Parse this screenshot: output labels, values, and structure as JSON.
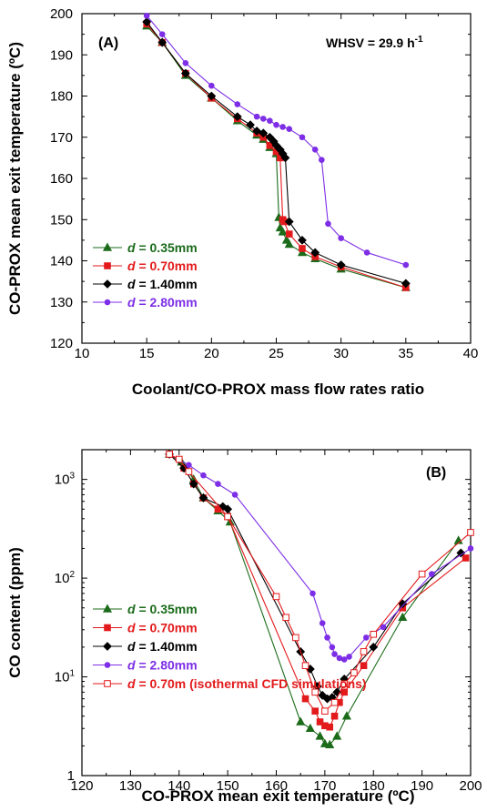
{
  "chart_data": [
    {
      "type": "line",
      "panel_label": "(A)",
      "annotation": {
        "prefix": "WHSV = 29.9 h",
        "sup": "-1"
      },
      "xlabel": "Coolant/CO-PROX mass flow rates ratio",
      "ylabel": "CO-PROX mean exit temperature (ºC)",
      "xlim": [
        10,
        40
      ],
      "ylim": [
        120,
        200
      ],
      "xscale": "linear",
      "yscale": "linear",
      "grid": false,
      "legend_position": "bottom-left",
      "xticks": [
        "10",
        "15",
        "20",
        "25",
        "30",
        "35",
        "40"
      ],
      "yticks": [
        "120",
        "130",
        "140",
        "150",
        "160",
        "170",
        "180",
        "190",
        "200"
      ],
      "series": [
        {
          "name_prefix": "d",
          "name_suffix": " = 0.35mm",
          "color": "#1b6b1b",
          "marker": "triangle",
          "x": [
            15,
            16.2,
            18,
            20,
            22,
            23.5,
            24,
            24.5,
            25,
            25.2,
            25.3,
            25.5,
            25.8,
            26,
            27,
            28,
            30,
            35
          ],
          "y": [
            197,
            193,
            185,
            179.5,
            174,
            170.5,
            169.5,
            167.5,
            166,
            150.5,
            148,
            147,
            145,
            144,
            142,
            140.5,
            138,
            133.5
          ]
        },
        {
          "name_prefix": "d",
          "name_suffix": " = 0.70mm",
          "color": "#e31a1c",
          "marker": "square",
          "x": [
            15,
            16.2,
            18,
            20,
            22,
            23.5,
            24,
            24.5,
            25,
            25.3,
            25.5,
            25.6,
            26,
            27,
            28,
            30,
            35
          ],
          "y": [
            197.5,
            193,
            185.5,
            179.5,
            174.5,
            171,
            170,
            168,
            166.5,
            165,
            150,
            149.5,
            146.5,
            143,
            141,
            138.5,
            133.5
          ]
        },
        {
          "name_prefix": "d",
          "name_suffix": " = 1.40mm",
          "color": "#000000",
          "marker": "diamond",
          "x": [
            15,
            16.2,
            18,
            20,
            22,
            23,
            23.5,
            24,
            24.5,
            24.8,
            25,
            25.3,
            25.5,
            25.7,
            26,
            27,
            28,
            30,
            35
          ],
          "y": [
            198,
            193,
            185.5,
            180,
            175,
            173,
            171.5,
            171,
            170,
            169,
            168,
            167,
            166,
            165,
            149.5,
            145,
            142,
            139,
            134.5
          ]
        },
        {
          "name_prefix": "d",
          "name_suffix": " = 2.80mm",
          "color": "#7d2ee6",
          "marker": "circle",
          "x": [
            15,
            16.2,
            18,
            20,
            22,
            23.5,
            24,
            24.5,
            25,
            25.5,
            26,
            27,
            28,
            28.5,
            29,
            30,
            32,
            35
          ],
          "y": [
            199.5,
            195,
            188,
            182.5,
            178,
            175,
            174.5,
            174,
            173,
            172.5,
            172,
            170,
            167,
            164.5,
            149,
            145.5,
            142,
            139
          ]
        }
      ]
    },
    {
      "type": "line",
      "panel_label": "(B)",
      "xlabel": "CO-PROX mean exit temperature (ºC)",
      "ylabel": "CO content (ppm)",
      "xlim": [
        120,
        200
      ],
      "ylim": [
        1,
        2000
      ],
      "xscale": "linear",
      "yscale": "log",
      "grid": false,
      "legend_position": "bottom-left",
      "xticks": [
        "120",
        "130",
        "140",
        "150",
        "160",
        "170",
        "180",
        "190",
        "200"
      ],
      "yticks": [
        {
          "base": "1",
          "exp": ""
        },
        {
          "base": "10",
          "exp": "1"
        },
        {
          "base": "10",
          "exp": "2"
        },
        {
          "base": "10",
          "exp": "3"
        }
      ],
      "series": [
        {
          "name_prefix": "d",
          "name_suffix": " = 0.35mm",
          "color": "#1b6b1b",
          "marker": "triangle",
          "hollow": false,
          "x": [
            138,
            140.5,
            143,
            145,
            148,
            150.5,
            165,
            167,
            169,
            170,
            171,
            172.5,
            174.5,
            186,
            197.5
          ],
          "y": [
            1800,
            1500,
            1000,
            650,
            480,
            370,
            3.5,
            3,
            2.5,
            2.1,
            2.05,
            2.5,
            4,
            40,
            240
          ]
        },
        {
          "name_prefix": "d",
          "name_suffix": " = 0.70mm",
          "color": "#e31a1c",
          "marker": "square",
          "hollow": false,
          "x": [
            138,
            141,
            143,
            145,
            148,
            150,
            166,
            168,
            169,
            170,
            171,
            172,
            173,
            174,
            178,
            186,
            199
          ],
          "y": [
            1800,
            1300,
            900,
            650,
            500,
            420,
            6,
            4.5,
            3.5,
            3.2,
            3.1,
            4,
            5.5,
            7,
            13,
            50,
            160
          ]
        },
        {
          "name_prefix": "d",
          "name_suffix": " = 1.40mm",
          "color": "#000000",
          "marker": "diamond",
          "hollow": false,
          "x": [
            138,
            141,
            143,
            145,
            149,
            150,
            165,
            167,
            168.5,
            169.5,
            170.5,
            171.5,
            172.5,
            174,
            180,
            186,
            198
          ],
          "y": [
            1800,
            1300,
            900,
            650,
            530,
            500,
            18,
            12,
            8,
            6.5,
            6,
            6.2,
            7,
            9.5,
            20,
            55,
            180
          ]
        },
        {
          "name_prefix": "d",
          "name_suffix": " = 2.80mm",
          "color": "#7d2ee6",
          "marker": "circle",
          "hollow": false,
          "x": [
            138,
            142,
            145,
            148,
            151.5,
            167.5,
            169.5,
            170.5,
            171.5,
            172,
            173,
            174,
            175,
            178.5,
            182,
            192,
            200
          ],
          "y": [
            1800,
            1400,
            1100,
            900,
            700,
            70,
            35,
            25,
            20,
            17,
            15.5,
            15,
            16,
            25,
            32,
            110,
            200
          ]
        },
        {
          "name_prefix": "d",
          "name_suffix": " = 0.70m (isothermal CFD simulations)",
          "color": "#e31a1c",
          "marker": "square",
          "hollow": true,
          "x": [
            138,
            140,
            142,
            150,
            160,
            162,
            164,
            166,
            168,
            170,
            172,
            174,
            176,
            178,
            180,
            190,
            200
          ],
          "y": [
            1800,
            1600,
            1200,
            420,
            65,
            40,
            25,
            13,
            7,
            4.5,
            5.5,
            8.5,
            11,
            18,
            27,
            110,
            290
          ]
        }
      ]
    }
  ]
}
